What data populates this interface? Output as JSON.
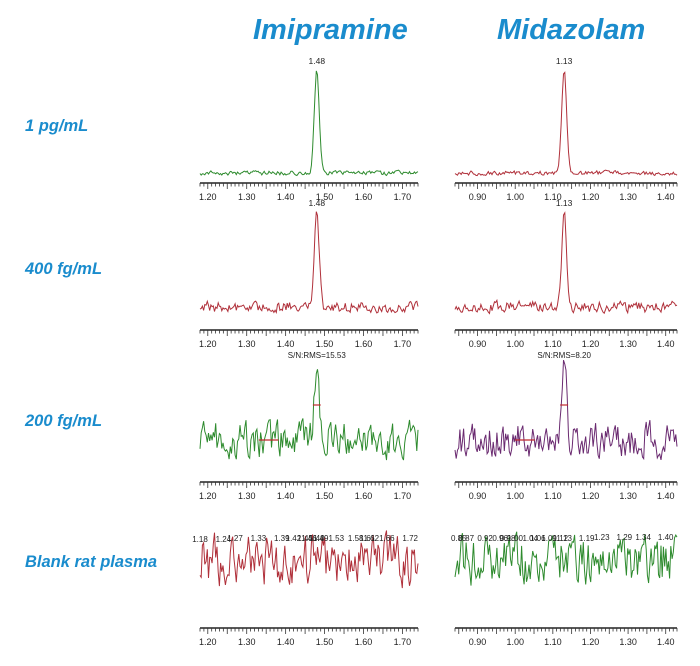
{
  "columns": [
    "Imipramine",
    "Midazolam"
  ],
  "rows": [
    "1 pg/mL",
    "400 fg/mL",
    "200 fg/mL",
    "Blank rat plasma"
  ],
  "colors": {
    "title": "#1a8ccd",
    "trace_green": "#2e8b2e",
    "trace_red": "#b0303a",
    "trace_purple": "#6a2a70",
    "trace_dark": "#3a3a3a",
    "marker": "#c0282d"
  },
  "chart_data": [
    {
      "type": "line",
      "compound": "Imipramine",
      "level": "1 pg/mL",
      "xlim": [
        1.18,
        1.74
      ],
      "xticks": [
        1.2,
        1.3,
        1.4,
        1.5,
        1.6,
        1.7
      ],
      "peak_labels": [
        "1.48"
      ],
      "peak_rt": 1.48,
      "annotation": "",
      "trace_color": "green"
    },
    {
      "type": "line",
      "compound": "Midazolam",
      "level": "1 pg/mL",
      "xlim": [
        0.84,
        1.43
      ],
      "xticks": [
        0.9,
        1.0,
        1.1,
        1.2,
        1.3,
        1.4
      ],
      "peak_labels": [
        "1.13"
      ],
      "peak_rt": 1.13,
      "annotation": "",
      "trace_color": "red"
    },
    {
      "type": "line",
      "compound": "Imipramine",
      "level": "400 fg/mL",
      "xlim": [
        1.18,
        1.74
      ],
      "xticks": [
        1.2,
        1.3,
        1.4,
        1.5,
        1.6,
        1.7
      ],
      "peak_labels": [
        "1.48"
      ],
      "peak_rt": 1.48,
      "annotation": "",
      "trace_color": "red"
    },
    {
      "type": "line",
      "compound": "Midazolam",
      "level": "400 fg/mL",
      "xlim": [
        0.84,
        1.43
      ],
      "xticks": [
        0.9,
        1.0,
        1.1,
        1.2,
        1.3,
        1.4
      ],
      "peak_labels": [
        "1.13"
      ],
      "peak_rt": 1.13,
      "annotation": "",
      "trace_color": "red"
    },
    {
      "type": "line",
      "compound": "Imipramine",
      "level": "200 fg/mL",
      "xlim": [
        1.18,
        1.74
      ],
      "xticks": [
        1.2,
        1.3,
        1.4,
        1.5,
        1.6,
        1.7
      ],
      "peak_labels": [],
      "peak_rt": 1.48,
      "annotation": "S/N:RMS=15.53",
      "trace_color": "green"
    },
    {
      "type": "line",
      "compound": "Midazolam",
      "level": "200 fg/mL",
      "xlim": [
        0.84,
        1.43
      ],
      "xticks": [
        0.9,
        1.0,
        1.1,
        1.2,
        1.3,
        1.4
      ],
      "peak_labels": [],
      "peak_rt": 1.13,
      "annotation": "S/N:RMS=8.20",
      "trace_color": "purple"
    },
    {
      "type": "line",
      "compound": "Imipramine",
      "level": "Blank rat plasma",
      "xlim": [
        1.18,
        1.74
      ],
      "xticks": [
        1.2,
        1.3,
        1.4,
        1.5,
        1.6,
        1.7
      ],
      "peak_labels": [
        "1.18",
        "1.24",
        "1.27",
        "1.33",
        "1.39",
        "1.42",
        "1.45",
        "1.46",
        "1.48",
        "1.49",
        "1.53",
        "1.58",
        "1.61",
        "1.62",
        "1.66",
        "1.72"
      ],
      "annotation": "",
      "trace_color": "red"
    },
    {
      "type": "line",
      "compound": "Midazolam",
      "level": "Blank rat plasma",
      "xlim": [
        0.84,
        1.43
      ],
      "xticks": [
        0.9,
        1.0,
        1.1,
        1.2,
        1.3,
        1.4
      ],
      "peak_labels": [
        "0.85",
        "0.87",
        "0.92",
        "0.96",
        "0.98",
        "1.00",
        "1.04",
        "1.06",
        "1.09",
        "1.12",
        "1.13",
        "1.19",
        "1.23",
        "1.29",
        "1.34",
        "1.40"
      ],
      "annotation": "",
      "trace_color": "green"
    }
  ]
}
